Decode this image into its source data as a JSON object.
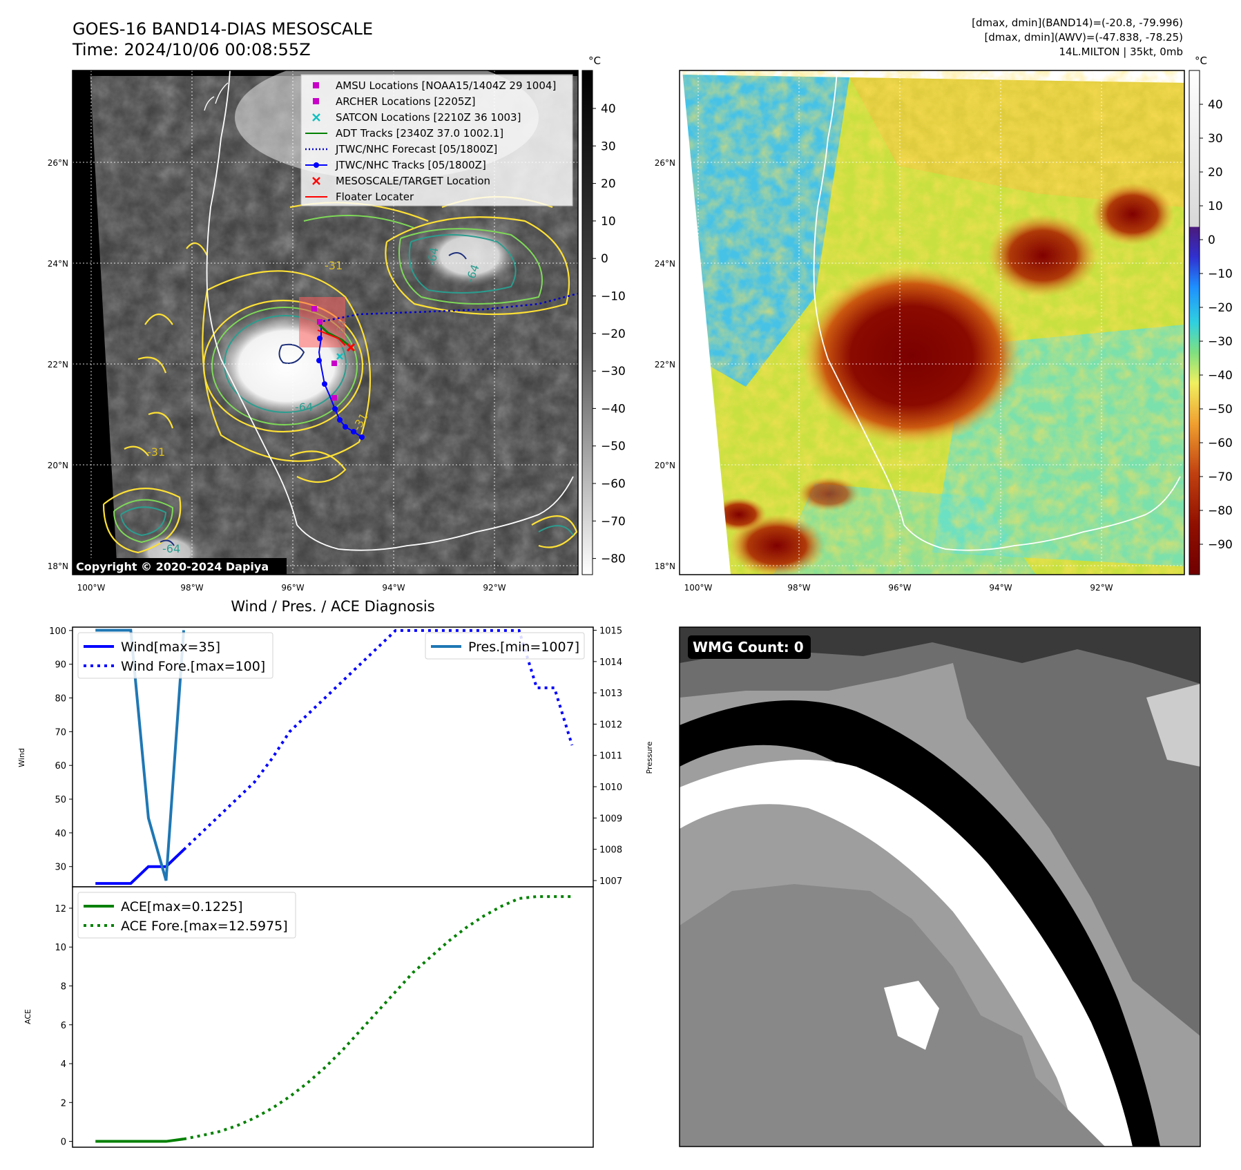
{
  "header": {
    "title_line1": "GOES-16 BAND14-DIAS MESOSCALE",
    "title_line2": "Time: 2024/10/06 00:08:55Z",
    "stats_line1": "[dmax, dmin](BAND14)=(-20.8, -79.996)",
    "stats_line2": "[dmax, dmin](AWV)=(-47.838, -78.25)",
    "stats_line3": "14L.MILTON | 35kt, 0mb"
  },
  "maps": {
    "lat_labels": [
      "26°N",
      "24°N",
      "22°N",
      "20°N",
      "18°N"
    ],
    "lon_labels": [
      "100°W",
      "98°W",
      "96°W",
      "94°W",
      "92°W"
    ],
    "colorbar_unit": "°C",
    "left_colorbar_ticks": [
      "40",
      "30",
      "20",
      "10",
      "0",
      "−10",
      "−20",
      "−30",
      "−40",
      "−50",
      "−60",
      "−70",
      "−80"
    ],
    "right_colorbar_ticks": [
      "40",
      "30",
      "20",
      "10",
      "0",
      "−10",
      "−20",
      "−30",
      "−40",
      "−50",
      "−60",
      "−70",
      "−80",
      "−90"
    ],
    "contour_labels": [
      "-31",
      "-64",
      "-64",
      "-64",
      "-31",
      "-31",
      "-64",
      "-64"
    ],
    "copyright": "Copyright © 2020-2024 Dapiya",
    "colors": {
      "contour_yellow": "#ffe135",
      "contour_green": "#7ed957",
      "contour_teal": "#2a9d8f",
      "contour_navy": "#1d2f7a"
    }
  },
  "legend": [
    {
      "label": "AMSU Locations [NOAA15/1404Z 29 1004]",
      "marker": "square",
      "color": "#c800c8"
    },
    {
      "label": "ARCHER Locations [2205Z]",
      "marker": "square",
      "color": "#c800c8"
    },
    {
      "label": "SATCON Locations [2210Z 36 1003]",
      "marker": "x",
      "color": "#10c0c0"
    },
    {
      "label": "ADT Tracks [2340Z 37.0 1002.1]",
      "marker": "line",
      "color": "#008000"
    },
    {
      "label": "JTWC/NHC Forecast [05/1800Z]",
      "marker": "dotted",
      "color": "#0000cc"
    },
    {
      "label": "JTWC/NHC Tracks [05/1800Z]",
      "marker": "line-dot",
      "color": "#0000ff"
    },
    {
      "label": "MESOSCALE/TARGET Location",
      "marker": "x",
      "color": "#ff0000"
    },
    {
      "label": "Floater Locater",
      "marker": "line",
      "color": "#ff0000"
    }
  ],
  "diagnosis": {
    "title": "Wind / Pres. / ACE Diagnosis",
    "wind_ylabel": "Wind",
    "pres_ylabel": "Pressure",
    "ace_ylabel": "ACE",
    "wmg_label": "WMG Count: 0"
  },
  "chart_data": [
    {
      "type": "line",
      "series": [
        {
          "name": "Wind[max=35]",
          "style": "solid",
          "color": "#0000ff",
          "x": [
            0,
            1,
            2,
            3,
            4,
            5
          ],
          "values": [
            25,
            25,
            25,
            30,
            30,
            35
          ]
        },
        {
          "name": "Wind Fore.[max=100]",
          "style": "dotted",
          "color": "#0000ff",
          "x": [
            5,
            6,
            7,
            8,
            9,
            10,
            11,
            12,
            13,
            14,
            15,
            16,
            17,
            18,
            19,
            20,
            21,
            22,
            23,
            24,
            25,
            26,
            27
          ],
          "values": [
            35,
            40,
            45,
            50,
            55,
            62,
            70,
            75,
            80,
            85,
            90,
            95,
            100,
            100,
            100,
            100,
            100,
            100,
            100,
            100,
            83,
            83,
            66
          ]
        },
        {
          "name": "Pres.[min=1007]",
          "style": "solid",
          "color": "#1f77b4",
          "axis": "right",
          "x": [
            0,
            1,
            2,
            3,
            4,
            5
          ],
          "values": [
            1015,
            1015,
            1015,
            1009,
            1007,
            1015
          ]
        }
      ],
      "ylim": [
        24,
        101
      ],
      "y2lim": [
        1006.8,
        1015.1
      ],
      "yticks": [
        30,
        40,
        50,
        60,
        70,
        80,
        90,
        100
      ],
      "y2ticks": [
        1007,
        1008,
        1009,
        1010,
        1011,
        1012,
        1013,
        1014,
        1015
      ],
      "ylabel": "Wind",
      "y2label": "Pressure"
    },
    {
      "type": "line",
      "series": [
        {
          "name": "ACE[max=0.1225]",
          "style": "solid",
          "color": "#008000",
          "x": [
            0,
            1,
            2,
            3,
            4,
            5
          ],
          "values": [
            0,
            0,
            0,
            0,
            0.0,
            0.1225
          ]
        },
        {
          "name": "ACE Fore.[max=12.5975]",
          "style": "dotted",
          "color": "#008000",
          "x": [
            5,
            6,
            7,
            8,
            9,
            10,
            11,
            12,
            13,
            14,
            15,
            16,
            17,
            18,
            19,
            20,
            21,
            22,
            23,
            24,
            25,
            26,
            27
          ],
          "values": [
            0.12,
            0.3,
            0.5,
            0.8,
            1.2,
            1.7,
            2.3,
            3.0,
            3.8,
            4.7,
            5.7,
            6.7,
            7.7,
            8.7,
            9.5,
            10.3,
            11.0,
            11.6,
            12.1,
            12.5,
            12.6,
            12.6,
            12.6
          ]
        }
      ],
      "ylim": [
        -0.3,
        13.1
      ],
      "yticks": [
        0,
        2,
        4,
        6,
        8,
        10,
        12
      ],
      "ylabel": "ACE"
    }
  ]
}
